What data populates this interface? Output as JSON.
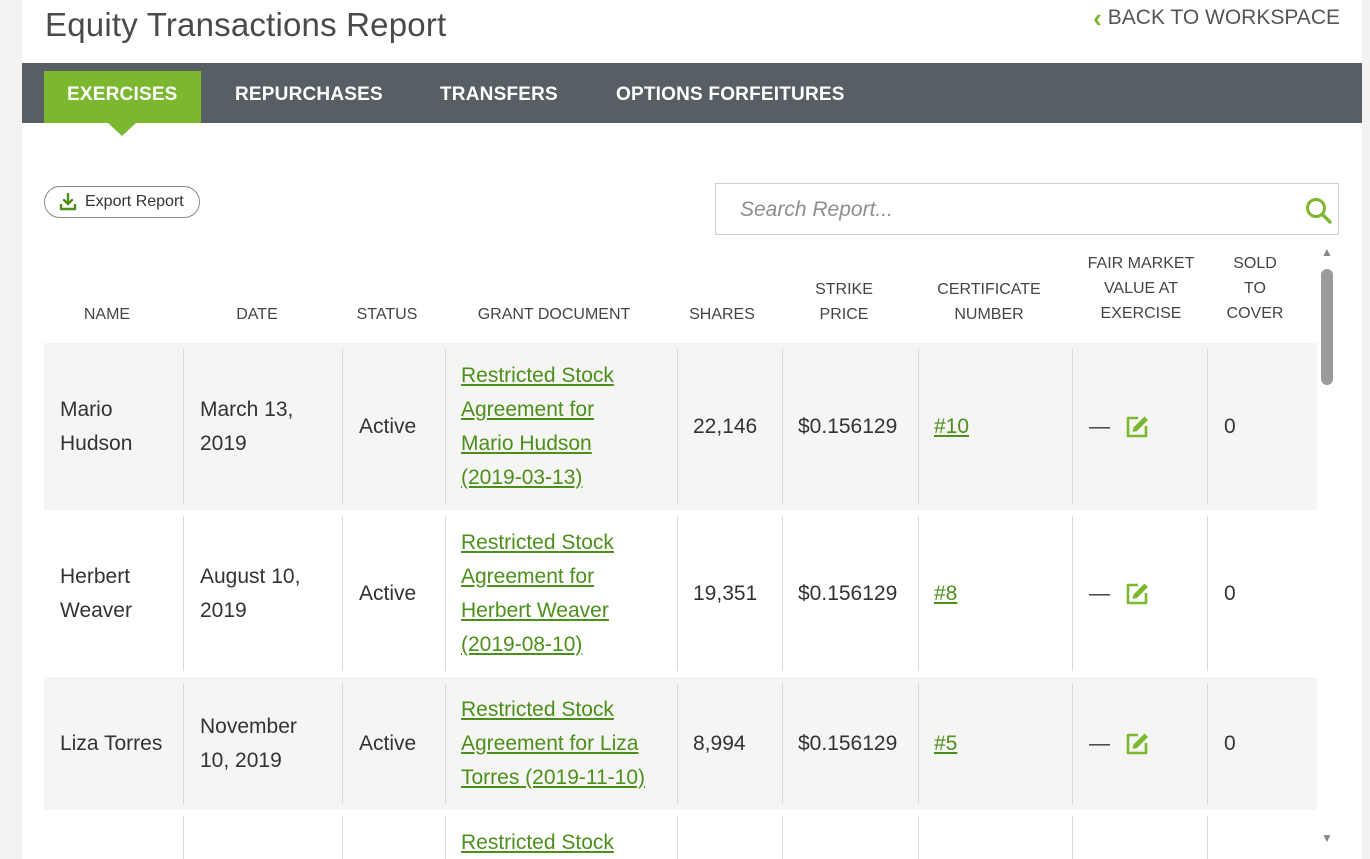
{
  "page": {
    "title": "Equity Transactions Report",
    "back_label": "BACK TO WORKSPACE"
  },
  "tabs": [
    {
      "label": "EXERCISES",
      "active": true
    },
    {
      "label": "REPURCHASES",
      "active": false
    },
    {
      "label": "TRANSFERS",
      "active": false
    },
    {
      "label": "OPTIONS FORFEITURES",
      "active": false
    }
  ],
  "toolbar": {
    "export_label": "Export Report",
    "search_placeholder": "Search Report..."
  },
  "colors": {
    "accent": "#7cb82f",
    "link": "#4d8f1b",
    "tabbar": "#585f64"
  },
  "columns": {
    "name": "NAME",
    "date": "DATE",
    "status": "STATUS",
    "grant_document": "GRANT DOCUMENT",
    "shares": "SHARES",
    "strike_price_1": "STRIKE",
    "strike_price_2": "PRICE",
    "certificate_1": "CERTIFICATE",
    "certificate_2": "NUMBER",
    "fmv_1": "FAIR MARKET",
    "fmv_2": "VALUE AT",
    "fmv_3": "EXERCISE",
    "sold_1": "SOLD",
    "sold_2": "TO",
    "sold_3": "COVER"
  },
  "rows": [
    {
      "name": "Mario\nHudson",
      "date": "March 13,\n2019",
      "status": "Active",
      "grant_document": "Restricted Stock\nAgreement for\nMario Hudson\n(2019-03-13)",
      "shares": "22,146",
      "strike_price": "$0.156129",
      "certificate": "#10",
      "fmv": "—",
      "sold_to_cover": "0"
    },
    {
      "name": "Herbert\nWeaver",
      "date": "August 10,\n2019",
      "status": "Active",
      "grant_document": "Restricted Stock\nAgreement for\nHerbert Weaver\n(2019-08-10)",
      "shares": "19,351",
      "strike_price": "$0.156129",
      "certificate": "#8",
      "fmv": "—",
      "sold_to_cover": "0"
    },
    {
      "name": "Liza Torres",
      "date": "November\n10, 2019",
      "status": "Active",
      "grant_document": "Restricted Stock\nAgreement for Liza\nTorres (2019-11-10)",
      "shares": "8,994",
      "strike_price": "$0.156129",
      "certificate": "#5",
      "fmv": "—",
      "sold_to_cover": "0"
    },
    {
      "grant_document": "Restricted Stock"
    }
  ]
}
